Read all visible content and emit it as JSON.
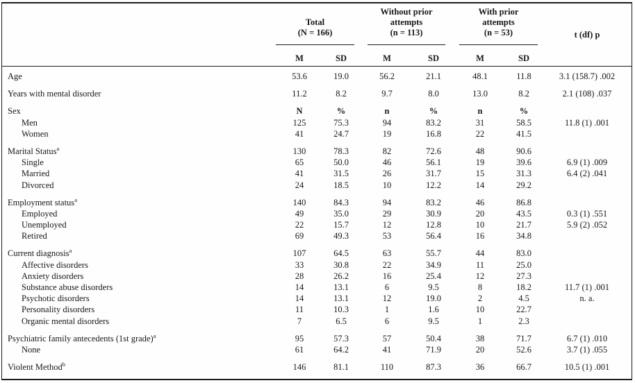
{
  "table": {
    "header": {
      "groups": [
        {
          "lines": [
            "Total",
            "(N = 166)"
          ],
          "sub": [
            "M",
            "SD"
          ]
        },
        {
          "lines": [
            "Without prior",
            "attempts",
            "(n = 113)"
          ],
          "sub": [
            "M",
            "SD"
          ]
        },
        {
          "lines": [
            "With prior",
            "attempts",
            "(n = 53)"
          ],
          "sub": [
            "M",
            "SD"
          ]
        }
      ],
      "stat_col": "t (df) p"
    },
    "groups": [
      {
        "rows": [
          {
            "label": "Age",
            "indent": 0,
            "sup": "",
            "values": [
              "53.6",
              "19.0",
              "56.2",
              "21.1",
              "48.1",
              "11.8"
            ],
            "stat": "3.1 (158.7) .002"
          }
        ]
      },
      {
        "rows": [
          {
            "label": "Years with mental disorder",
            "indent": 0,
            "sup": "",
            "values": [
              "11.2",
              "8.2",
              "9.7",
              "8.0",
              "13.0",
              "8.2"
            ],
            "stat": "2.1 (108) .037"
          }
        ]
      },
      {
        "rows": [
          {
            "label": "Sex",
            "indent": 0,
            "sup": "",
            "values": [
              "N",
              "%",
              "n",
              "%",
              "n",
              "%"
            ],
            "bold_values": true,
            "stat": ""
          },
          {
            "label": "Men",
            "indent": 1,
            "sup": "",
            "values": [
              "125",
              "75.3",
              "94",
              "83.2",
              "31",
              "58.5"
            ],
            "stat": "11.8 (1) .001"
          },
          {
            "label": "Women",
            "indent": 1,
            "sup": "",
            "values": [
              "41",
              "24.7",
              "19",
              "16.8",
              "22",
              "41.5"
            ],
            "stat": ""
          }
        ]
      },
      {
        "rows": [
          {
            "label": "Marital Status",
            "indent": 0,
            "sup": "a",
            "values": [
              "130",
              "78.3",
              "82",
              "72.6",
              "48",
              "90.6"
            ],
            "stat": ""
          },
          {
            "label": "Single",
            "indent": 1,
            "sup": "",
            "values": [
              "65",
              "50.0",
              "46",
              "56.1",
              "19",
              "39.6"
            ],
            "stat": "6.9 (1) .009"
          },
          {
            "label": "Married",
            "indent": 1,
            "sup": "",
            "values": [
              "41",
              "31.5",
              "26",
              "31.7",
              "15",
              "31.3"
            ],
            "stat": "6.4 (2) .041"
          },
          {
            "label": "Divorced",
            "indent": 1,
            "sup": "",
            "values": [
              "24",
              "18.5",
              "10",
              "12.2",
              "14",
              "29.2"
            ],
            "stat": ""
          }
        ]
      },
      {
        "rows": [
          {
            "label": "Employment status",
            "indent": 0,
            "sup": "a",
            "values": [
              "140",
              "84.3",
              "94",
              "83.2",
              "46",
              "86.8"
            ],
            "stat": ""
          },
          {
            "label": "Employed",
            "indent": 1,
            "sup": "",
            "values": [
              "49",
              "35.0",
              "29",
              "30.9",
              "20",
              "43.5"
            ],
            "stat": "0.3 (1) .551"
          },
          {
            "label": "Unemployed",
            "indent": 1,
            "sup": "",
            "values": [
              "22",
              "15.7",
              "12",
              "12.8",
              "10",
              "21.7"
            ],
            "stat": "5.9 (2) .052"
          },
          {
            "label": "Retired",
            "indent": 1,
            "sup": "",
            "values": [
              "69",
              "49.3",
              "53",
              "56.4",
              "16",
              "34.8"
            ],
            "stat": ""
          }
        ]
      },
      {
        "rows": [
          {
            "label": "Current diagnosis",
            "indent": 0,
            "sup": "a",
            "values": [
              "107",
              "64.5",
              "63",
              "55.7",
              "44",
              "83.0"
            ],
            "stat": ""
          },
          {
            "label": "Affective disorders",
            "indent": 1,
            "sup": "",
            "values": [
              "33",
              "30.8",
              "22",
              "34.9",
              "11",
              "25.0"
            ],
            "stat": ""
          },
          {
            "label": "Anxiety disorders",
            "indent": 1,
            "sup": "",
            "values": [
              "28",
              "26.2",
              "16",
              "25.4",
              "12",
              "27.3"
            ],
            "stat": ""
          },
          {
            "label": "Substance abuse disorders",
            "indent": 1,
            "sup": "",
            "values": [
              "14",
              "13.1",
              "6",
              "9.5",
              "8",
              "18.2"
            ],
            "stat": "11.7 (1) .001"
          },
          {
            "label": "Psychotic disorders",
            "indent": 1,
            "sup": "",
            "values": [
              "14",
              "13.1",
              "12",
              "19.0",
              "2",
              "4.5"
            ],
            "stat": "n. a."
          },
          {
            "label": "Personality disorders",
            "indent": 1,
            "sup": "",
            "values": [
              "11",
              "10.3",
              "1",
              "1.6",
              "10",
              "22.7"
            ],
            "stat": ""
          },
          {
            "label": "Organic mental disorders",
            "indent": 1,
            "sup": "",
            "values": [
              "7",
              "6.5",
              "6",
              "9.5",
              "1",
              "2.3"
            ],
            "stat": ""
          }
        ]
      },
      {
        "rows": [
          {
            "label": "Psychiatric family antecedents (1st grade)",
            "indent": 0,
            "sup": "a",
            "values": [
              "95",
              "57.3",
              "57",
              "50.4",
              "38",
              "71.7"
            ],
            "stat": "6.7 (1) .010"
          },
          {
            "label": "None",
            "indent": 1,
            "sup": "",
            "values": [
              "61",
              "64.2",
              "41",
              "71.9",
              "20",
              "52.6"
            ],
            "stat": "3.7 (1) .055"
          }
        ]
      },
      {
        "rows": [
          {
            "label": "Violent Method",
            "indent": 0,
            "sup": "b",
            "values": [
              "146",
              "81.1",
              "110",
              "87.3",
              "36",
              "66.7"
            ],
            "stat": "10.5 (1) .001"
          }
        ]
      }
    ]
  }
}
